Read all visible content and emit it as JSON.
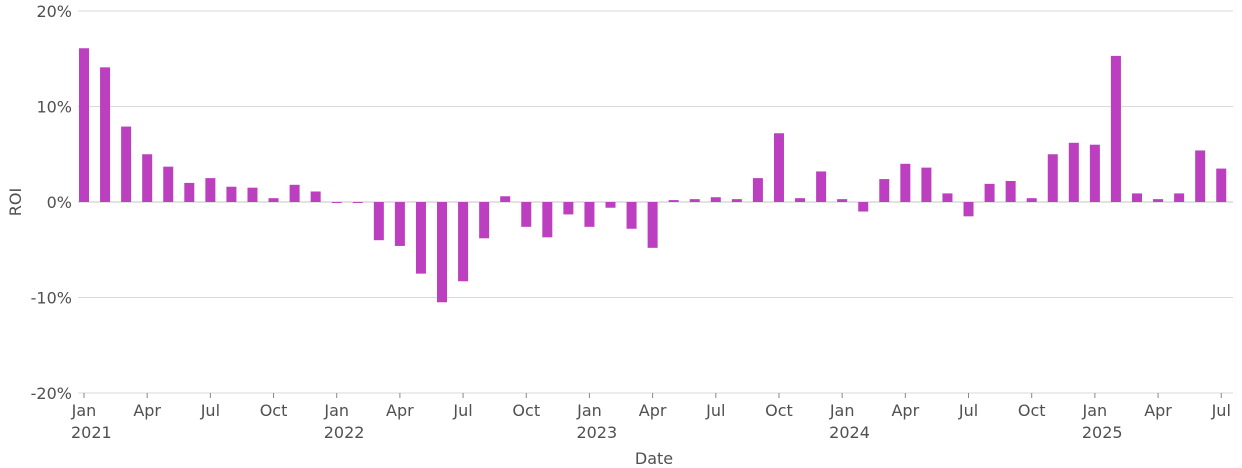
{
  "chart_data": {
    "type": "bar",
    "xlabel": "Date",
    "ylabel": "ROI",
    "ylim": [
      -20,
      20
    ],
    "yticks": [
      {
        "value": 20,
        "label": "20%"
      },
      {
        "value": 10,
        "label": "10%"
      },
      {
        "value": 0,
        "label": "0%"
      },
      {
        "value": -10,
        "label": "-10%"
      },
      {
        "value": -20,
        "label": "-20%"
      }
    ],
    "xticks": [
      {
        "date": "2021-01",
        "label": "Jan",
        "year": "2021"
      },
      {
        "date": "2021-04",
        "label": "Apr"
      },
      {
        "date": "2021-07",
        "label": "Jul"
      },
      {
        "date": "2021-10",
        "label": "Oct"
      },
      {
        "date": "2022-01",
        "label": "Jan",
        "year": "2022"
      },
      {
        "date": "2022-04",
        "label": "Apr"
      },
      {
        "date": "2022-07",
        "label": "Jul"
      },
      {
        "date": "2022-10",
        "label": "Oct"
      },
      {
        "date": "2023-01",
        "label": "Jan",
        "year": "2023"
      },
      {
        "date": "2023-04",
        "label": "Apr"
      },
      {
        "date": "2023-07",
        "label": "Jul"
      },
      {
        "date": "2023-10",
        "label": "Oct"
      },
      {
        "date": "2024-01",
        "label": "Jan",
        "year": "2024"
      },
      {
        "date": "2024-04",
        "label": "Apr"
      },
      {
        "date": "2024-07",
        "label": "Jul"
      },
      {
        "date": "2024-10",
        "label": "Oct"
      },
      {
        "date": "2025-01",
        "label": "Jan",
        "year": "2025"
      },
      {
        "date": "2025-04",
        "label": "Apr"
      },
      {
        "date": "2025-07",
        "label": "Jul"
      }
    ],
    "bar_color": "#bb3fbf",
    "grid": true,
    "categories": [
      "2021-01",
      "2021-02",
      "2021-03",
      "2021-04",
      "2021-05",
      "2021-06",
      "2021-07",
      "2021-08",
      "2021-09",
      "2021-10",
      "2021-11",
      "2021-12",
      "2022-01",
      "2022-02",
      "2022-03",
      "2022-04",
      "2022-05",
      "2022-06",
      "2022-07",
      "2022-08",
      "2022-09",
      "2022-10",
      "2022-11",
      "2022-12",
      "2023-01",
      "2023-02",
      "2023-03",
      "2023-04",
      "2023-05",
      "2023-06",
      "2023-07",
      "2023-08",
      "2023-09",
      "2023-10",
      "2023-11",
      "2023-12",
      "2024-01",
      "2024-02",
      "2024-03",
      "2024-04",
      "2024-05",
      "2024-06",
      "2024-07",
      "2024-08",
      "2024-09",
      "2024-10",
      "2024-11",
      "2024-12",
      "2025-01",
      "2025-02",
      "2025-03",
      "2025-04",
      "2025-05",
      "2025-06",
      "2025-07"
    ],
    "values": [
      16.1,
      14.1,
      7.9,
      5.0,
      3.7,
      2.0,
      2.5,
      1.6,
      1.5,
      0.4,
      1.8,
      1.1,
      -0.1,
      -0.1,
      -4.0,
      -4.6,
      -7.5,
      -10.5,
      -8.3,
      -3.8,
      0.6,
      -2.6,
      -3.7,
      -1.3,
      -2.6,
      -0.6,
      -2.8,
      -4.8,
      0.2,
      0.3,
      0.5,
      0.3,
      2.5,
      7.2,
      0.4,
      3.2,
      0.3,
      -1.0,
      2.4,
      4.0,
      3.6,
      0.9,
      -1.5,
      1.9,
      2.2,
      0.4,
      5.0,
      6.2,
      6.0,
      15.3,
      0.9,
      0.3,
      0.9,
      5.4,
      3.5
    ]
  }
}
